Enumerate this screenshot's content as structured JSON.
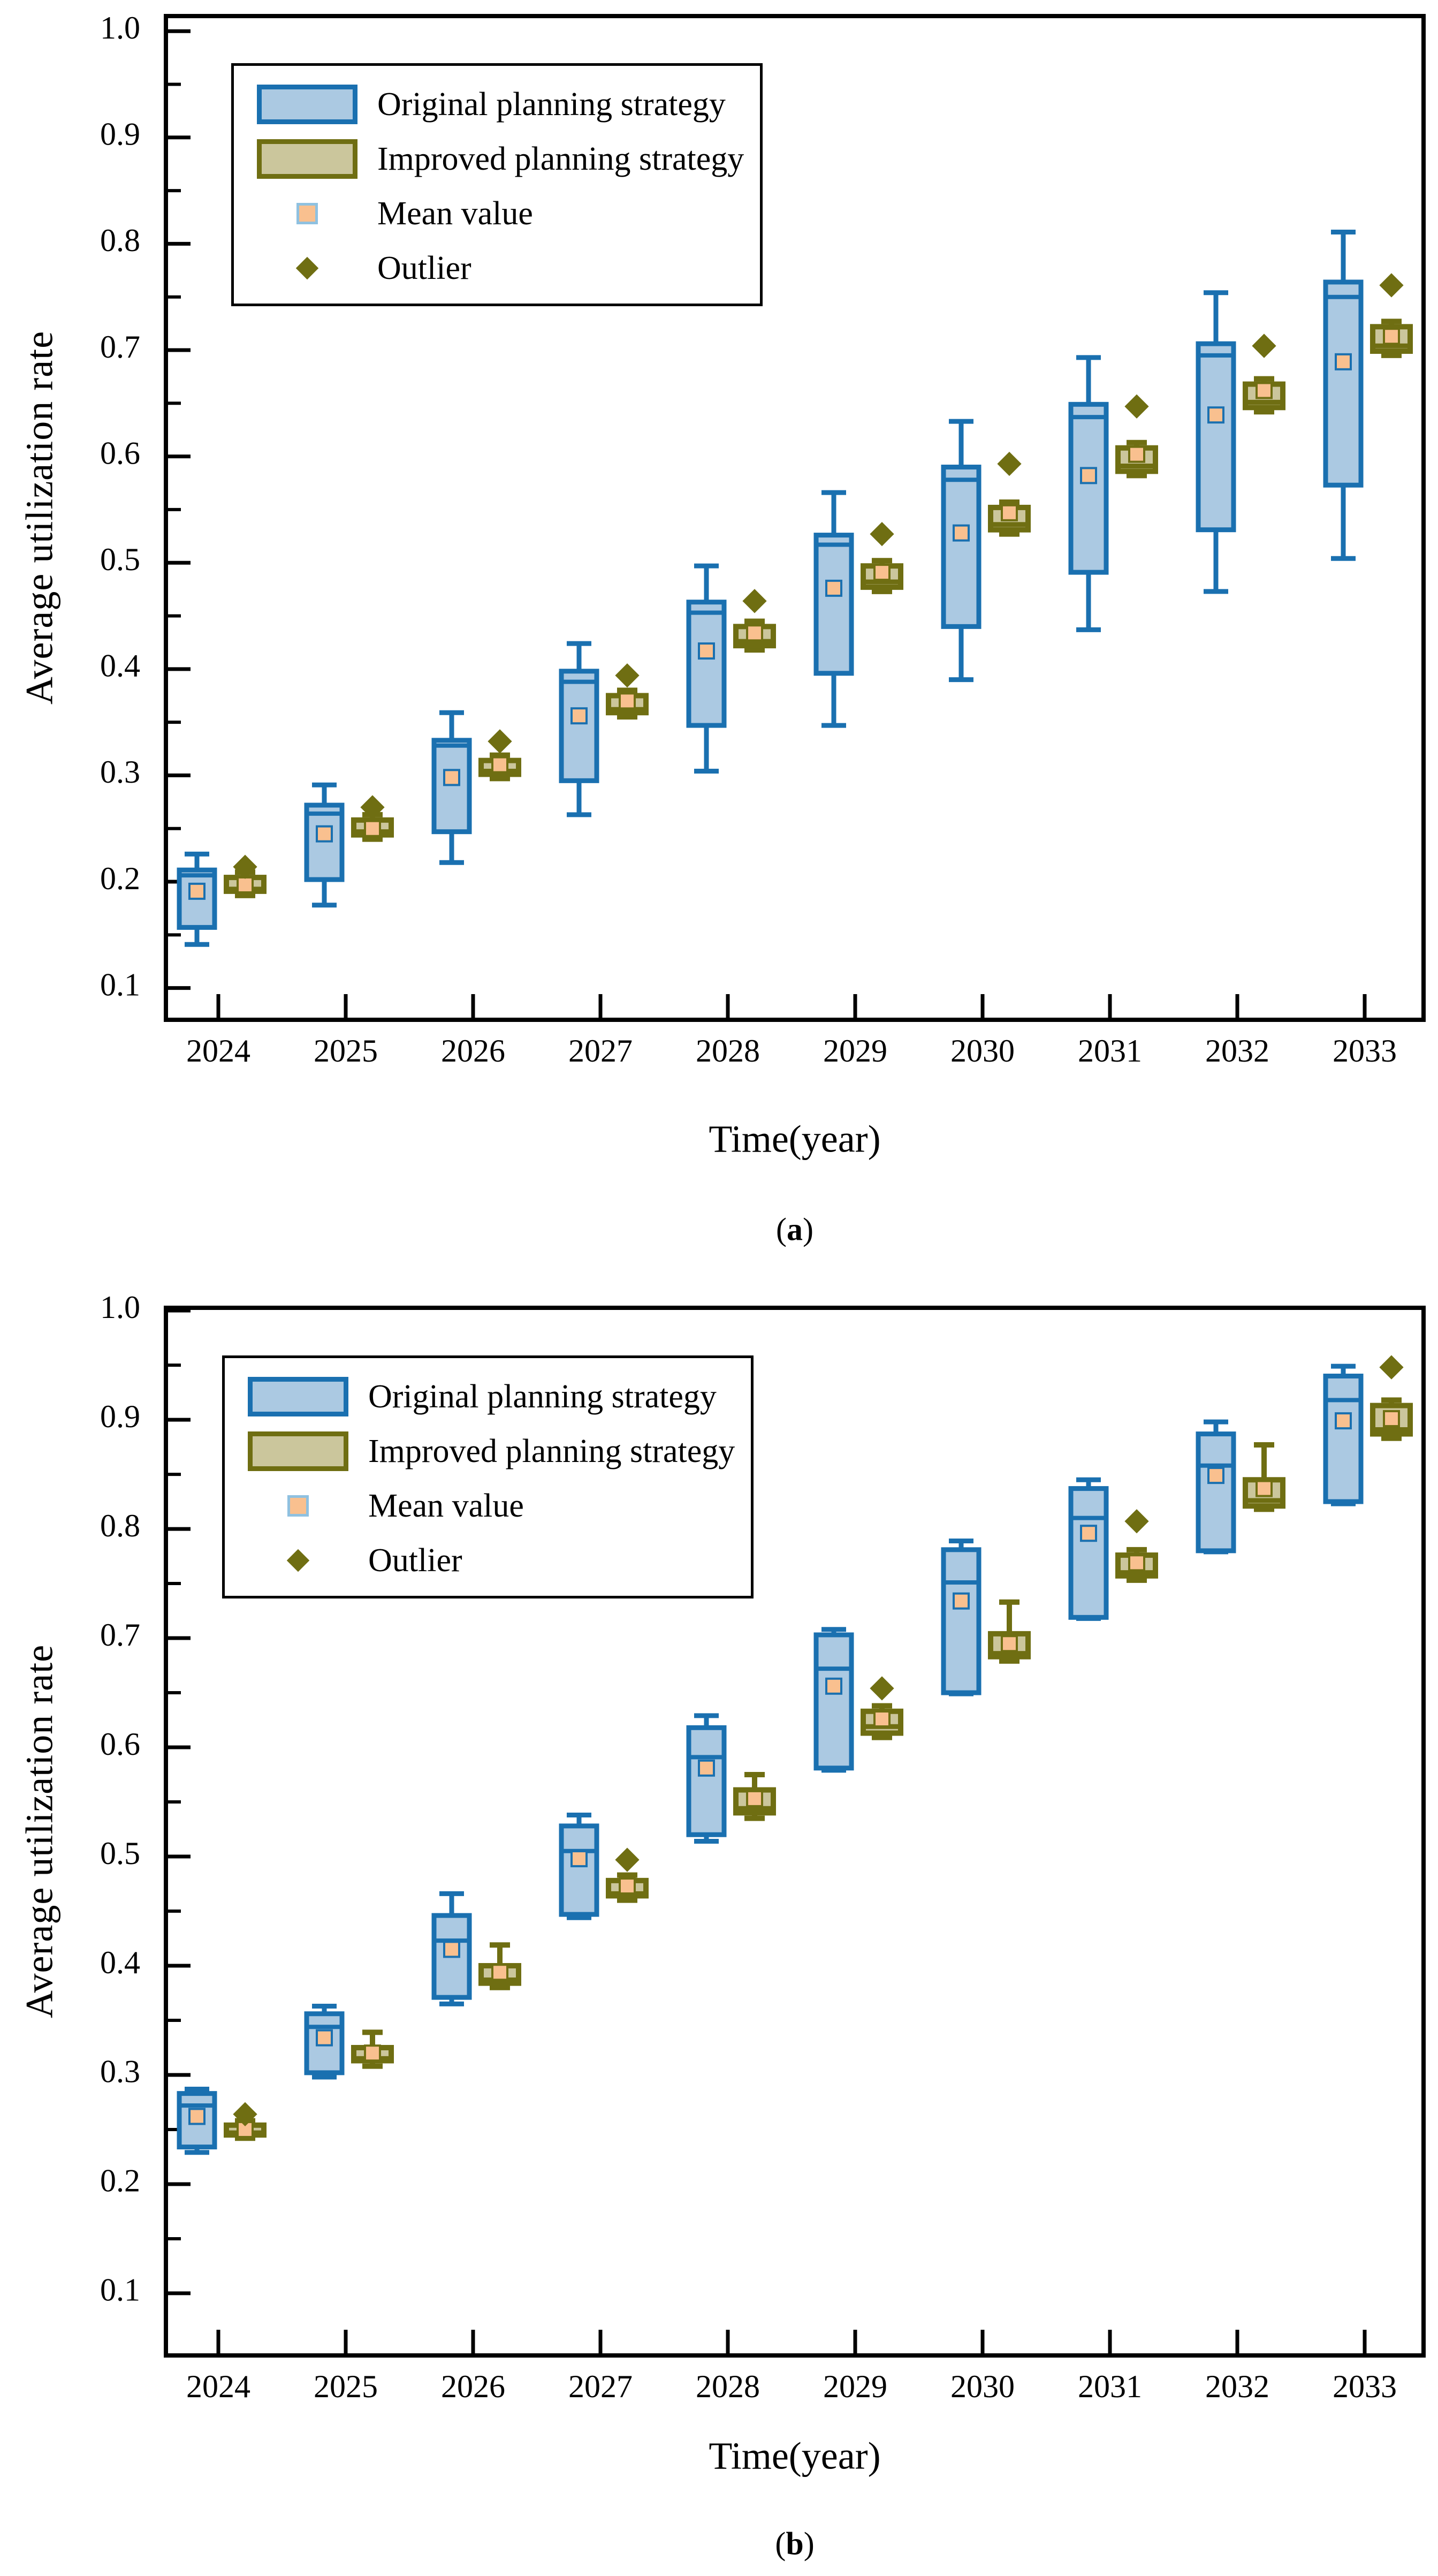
{
  "figure": {
    "background": "#ffffff"
  },
  "colors": {
    "original_border": "#1a70b0",
    "original_fill": "#abc9e2",
    "improved_border": "#6f6e12",
    "improved_fill": "#cbc69c",
    "mean_fill": "#f9c08f",
    "mean_border_original": "#1a70b0",
    "mean_border_improved": "#6f6e12",
    "mean_border_legend": "#8fc1e0",
    "outlier": "#6f6e12",
    "axis": "#000000"
  },
  "legend": {
    "items": [
      {
        "type": "original",
        "label": "Original planning strategy"
      },
      {
        "type": "improved",
        "label": "Improved planning strategy"
      },
      {
        "type": "mean",
        "label": "Mean value"
      },
      {
        "type": "outlier",
        "label": "Outlier"
      }
    ]
  },
  "chart_data": [
    {
      "type": "boxplot",
      "panel_label": "a",
      "xlabel": "Time(year)",
      "ylabel": "Average utilization rate",
      "categories": [
        "2024",
        "2025",
        "2026",
        "2027",
        "2028",
        "2029",
        "2030",
        "2031",
        "2032",
        "2033"
      ],
      "yticks": [
        "0.1",
        "0.2",
        "0.3",
        "0.4",
        "0.5",
        "0.6",
        "0.7",
        "0.8",
        "0.9",
        "1.0"
      ],
      "ylim": [
        0.0701,
        1.0142
      ],
      "grid": false,
      "legend_position": "upper-left",
      "series": [
        {
          "name": "Original planning strategy",
          "key": "original",
          "boxes": [
            {
              "low": 0.141,
              "q1": 0.157,
              "median": 0.206,
              "q3": 0.211,
              "high": 0.226,
              "mean": 0.191,
              "outlier": null
            },
            {
              "low": 0.178,
              "q1": 0.202,
              "median": 0.264,
              "q3": 0.272,
              "high": 0.291,
              "mean": 0.245,
              "outlier": null
            },
            {
              "low": 0.218,
              "q1": 0.247,
              "median": 0.328,
              "q3": 0.333,
              "high": 0.359,
              "mean": 0.298,
              "outlier": null
            },
            {
              "low": 0.263,
              "q1": 0.295,
              "median": 0.388,
              "q3": 0.398,
              "high": 0.424,
              "mean": 0.356,
              "outlier": null
            },
            {
              "low": 0.304,
              "q1": 0.347,
              "median": 0.453,
              "q3": 0.463,
              "high": 0.497,
              "mean": 0.417,
              "outlier": null
            },
            {
              "low": 0.347,
              "q1": 0.396,
              "median": 0.517,
              "q3": 0.526,
              "high": 0.566,
              "mean": 0.476,
              "outlier": null
            },
            {
              "low": 0.39,
              "q1": 0.44,
              "median": 0.578,
              "q3": 0.59,
              "high": 0.633,
              "mean": 0.528,
              "outlier": null
            },
            {
              "low": 0.437,
              "q1": 0.491,
              "median": 0.637,
              "q3": 0.649,
              "high": 0.693,
              "mean": 0.582,
              "outlier": null
            },
            {
              "low": 0.473,
              "q1": 0.531,
              "median": 0.695,
              "q3": 0.706,
              "high": 0.754,
              "mean": 0.639,
              "outlier": null
            },
            {
              "low": 0.504,
              "q1": 0.573,
              "median": 0.75,
              "q3": 0.764,
              "high": 0.811,
              "mean": 0.689,
              "outlier": null
            }
          ]
        },
        {
          "name": "Improved planning strategy",
          "key": "improved",
          "boxes": [
            {
              "low": 0.187,
              "q1": 0.191,
              "median": 0.193,
              "q3": 0.204,
              "high": 0.209,
              "mean": 0.197,
              "outlier": 0.214
            },
            {
              "low": 0.24,
              "q1": 0.244,
              "median": 0.247,
              "q3": 0.258,
              "high": 0.263,
              "mean": 0.25,
              "outlier": 0.27
            },
            {
              "low": 0.297,
              "q1": 0.301,
              "median": 0.304,
              "q3": 0.314,
              "high": 0.319,
              "mean": 0.31,
              "outlier": 0.332
            },
            {
              "low": 0.355,
              "q1": 0.359,
              "median": 0.362,
              "q3": 0.375,
              "high": 0.38,
              "mean": 0.37,
              "outlier": 0.394
            },
            {
              "low": 0.418,
              "q1": 0.422,
              "median": 0.426,
              "q3": 0.44,
              "high": 0.445,
              "mean": 0.434,
              "outlier": 0.464
            },
            {
              "low": 0.473,
              "q1": 0.477,
              "median": 0.482,
              "q3": 0.497,
              "high": 0.502,
              "mean": 0.491,
              "outlier": 0.527
            },
            {
              "low": 0.527,
              "q1": 0.531,
              "median": 0.536,
              "q3": 0.552,
              "high": 0.557,
              "mean": 0.547,
              "outlier": 0.593
            },
            {
              "low": 0.582,
              "q1": 0.586,
              "median": 0.591,
              "q3": 0.608,
              "high": 0.613,
              "mean": 0.602,
              "outlier": 0.647
            },
            {
              "low": 0.642,
              "q1": 0.646,
              "median": 0.651,
              "q3": 0.668,
              "high": 0.673,
              "mean": 0.662,
              "outlier": 0.704
            },
            {
              "low": 0.695,
              "q1": 0.699,
              "median": 0.704,
              "q3": 0.722,
              "high": 0.727,
              "mean": 0.713,
              "outlier": 0.761
            }
          ]
        }
      ]
    },
    {
      "type": "boxplot",
      "panel_label": "b",
      "xlabel": "Time(year)",
      "ylabel": "Average utilization rate",
      "categories": [
        "2024",
        "2025",
        "2026",
        "2027",
        "2028",
        "2029",
        "2030",
        "2031",
        "2032",
        "2033"
      ],
      "yticks": [
        "0.1",
        "0.2",
        "0.3",
        "0.4",
        "0.5",
        "0.6",
        "0.7",
        "0.8",
        "0.9",
        "1.0"
      ],
      "ylim": [
        0.0431,
        1.0025
      ],
      "grid": false,
      "legend_position": "upper-left",
      "series": [
        {
          "name": "Original planning strategy",
          "key": "original",
          "boxes": [
            {
              "low": 0.229,
              "q1": 0.234,
              "median": 0.272,
              "q3": 0.283,
              "high": 0.287,
              "mean": 0.262,
              "outlier": null
            },
            {
              "low": 0.298,
              "q1": 0.302,
              "median": 0.344,
              "q3": 0.356,
              "high": 0.363,
              "mean": 0.334,
              "outlier": null
            },
            {
              "low": 0.365,
              "q1": 0.371,
              "median": 0.423,
              "q3": 0.446,
              "high": 0.466,
              "mean": 0.415,
              "outlier": null
            },
            {
              "low": 0.444,
              "q1": 0.447,
              "median": 0.505,
              "q3": 0.528,
              "high": 0.538,
              "mean": 0.498,
              "outlier": null
            },
            {
              "low": 0.514,
              "q1": 0.52,
              "median": 0.591,
              "q3": 0.618,
              "high": 0.629,
              "mean": 0.581,
              "outlier": null
            },
            {
              "low": 0.579,
              "q1": 0.581,
              "median": 0.672,
              "q3": 0.703,
              "high": 0.708,
              "mean": 0.656,
              "outlier": null
            },
            {
              "low": 0.649,
              "q1": 0.65,
              "median": 0.751,
              "q3": 0.781,
              "high": 0.789,
              "mean": 0.734,
              "outlier": null
            },
            {
              "low": 0.718,
              "q1": 0.719,
              "median": 0.81,
              "q3": 0.837,
              "high": 0.845,
              "mean": 0.796,
              "outlier": null
            },
            {
              "low": 0.779,
              "q1": 0.78,
              "median": 0.858,
              "q3": 0.887,
              "high": 0.898,
              "mean": 0.849,
              "outlier": null
            },
            {
              "low": 0.823,
              "q1": 0.825,
              "median": 0.918,
              "q3": 0.94,
              "high": 0.949,
              "mean": 0.899,
              "outlier": null
            }
          ]
        },
        {
          "name": "Improved planning strategy",
          "key": "improved",
          "boxes": [
            {
              "low": 0.242,
              "q1": 0.245,
              "median": 0.247,
              "q3": 0.254,
              "high": 0.258,
              "mean": 0.25,
              "outlier": 0.264
            },
            {
              "low": 0.308,
              "q1": 0.313,
              "median": 0.315,
              "q3": 0.325,
              "high": 0.339,
              "mean": 0.32,
              "outlier": null
            },
            {
              "low": 0.38,
              "q1": 0.384,
              "median": 0.387,
              "q3": 0.4,
              "high": 0.419,
              "mean": 0.394,
              "outlier": null
            },
            {
              "low": 0.46,
              "q1": 0.464,
              "median": 0.466,
              "q3": 0.478,
              "high": 0.483,
              "mean": 0.473,
              "outlier": 0.497
            },
            {
              "low": 0.535,
              "q1": 0.54,
              "median": 0.544,
              "q3": 0.561,
              "high": 0.575,
              "mean": 0.553,
              "outlier": null
            },
            {
              "low": 0.609,
              "q1": 0.613,
              "median": 0.619,
              "q3": 0.633,
              "high": 0.638,
              "mean": 0.626,
              "outlier": 0.654
            },
            {
              "low": 0.679,
              "q1": 0.683,
              "median": 0.686,
              "q3": 0.704,
              "high": 0.733,
              "mean": 0.695,
              "outlier": null
            },
            {
              "low": 0.753,
              "q1": 0.757,
              "median": 0.76,
              "q3": 0.776,
              "high": 0.781,
              "mean": 0.769,
              "outlier": 0.807
            },
            {
              "low": 0.818,
              "q1": 0.821,
              "median": 0.826,
              "q3": 0.845,
              "high": 0.877,
              "mean": 0.837,
              "outlier": null
            },
            {
              "low": 0.883,
              "q1": 0.887,
              "median": 0.891,
              "q3": 0.913,
              "high": 0.918,
              "mean": 0.901,
              "outlier": 0.948
            }
          ]
        }
      ]
    }
  ]
}
